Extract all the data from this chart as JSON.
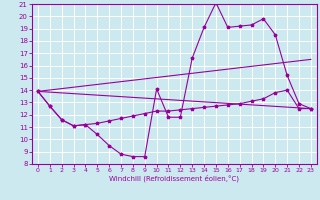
{
  "xlabel": "Windchill (Refroidissement éolien,°C)",
  "xlim": [
    -0.5,
    23.5
  ],
  "ylim": [
    8,
    21
  ],
  "yticks": [
    8,
    9,
    10,
    11,
    12,
    13,
    14,
    15,
    16,
    17,
    18,
    19,
    20,
    21
  ],
  "xticks": [
    0,
    1,
    2,
    3,
    4,
    5,
    6,
    7,
    8,
    9,
    10,
    11,
    12,
    13,
    14,
    15,
    16,
    17,
    18,
    19,
    20,
    21,
    22,
    23
  ],
  "background_color": "#cce9f0",
  "line_color": "#990099",
  "grid_color": "#ffffff",
  "lines": [
    {
      "x": [
        0,
        1,
        2,
        3,
        4,
        5,
        6,
        7,
        8,
        9,
        10,
        11,
        12,
        13,
        14,
        15,
        16,
        17,
        18,
        19,
        20,
        21,
        22,
        23
      ],
      "y": [
        13.9,
        12.7,
        11.6,
        11.1,
        11.2,
        10.4,
        9.5,
        8.8,
        8.6,
        8.6,
        14.1,
        11.8,
        11.8,
        16.6,
        19.1,
        21.1,
        19.1,
        19.2,
        19.3,
        19.8,
        18.5,
        15.2,
        12.9,
        12.5
      ],
      "has_markers": true
    },
    {
      "x": [
        0,
        1,
        2,
        3,
        4,
        5,
        6,
        7,
        8,
        9,
        10,
        11,
        12,
        13,
        14,
        15,
        16,
        17,
        18,
        19,
        20,
        21,
        22,
        23
      ],
      "y": [
        13.9,
        12.7,
        11.6,
        11.1,
        11.2,
        11.3,
        11.5,
        11.7,
        11.9,
        12.1,
        12.3,
        12.3,
        12.4,
        12.5,
        12.6,
        12.7,
        12.8,
        12.9,
        13.1,
        13.3,
        13.8,
        14.0,
        12.5,
        12.5
      ],
      "has_markers": true
    },
    {
      "x": [
        0,
        23
      ],
      "y": [
        13.9,
        12.5
      ],
      "has_markers": false
    },
    {
      "x": [
        0,
        23
      ],
      "y": [
        13.9,
        16.5
      ],
      "has_markers": false
    }
  ]
}
